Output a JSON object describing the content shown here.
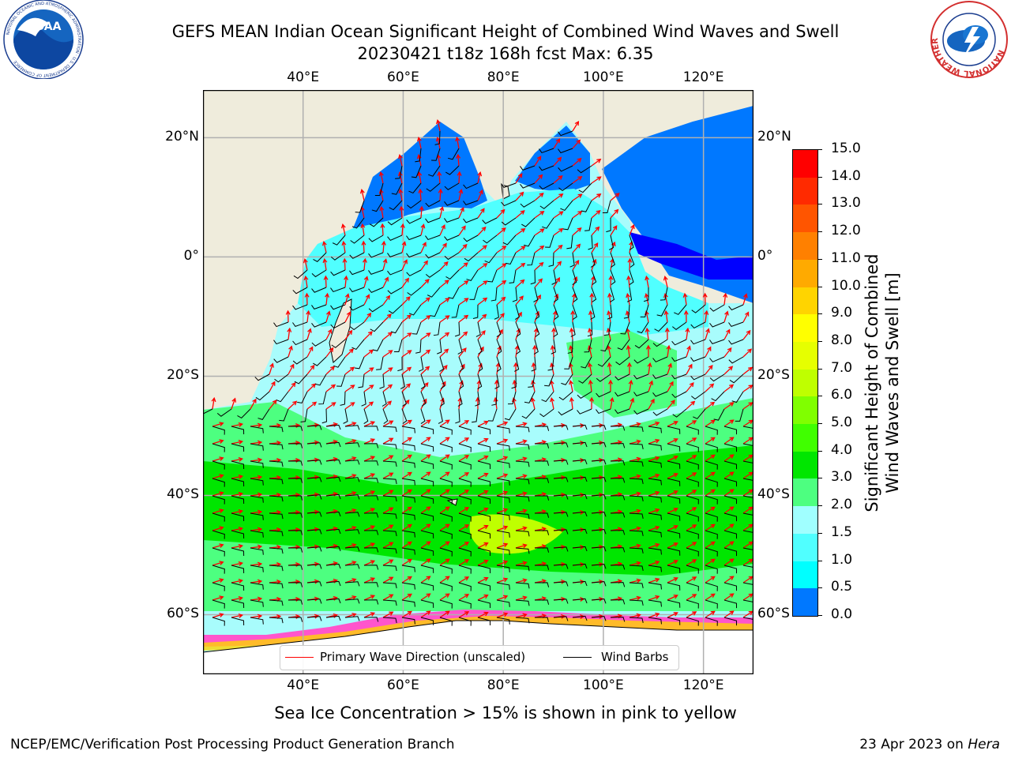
{
  "header": {
    "title_line1": "GEFS MEAN Indian Ocean Significant Height of Combined Wind Waves and Swell",
    "title_line2": "20230421 t18z 168h fcst   Max: 6.35"
  },
  "logos": {
    "noaa_text": "NOAA",
    "noaa_ring": "NATIONAL OCEANIC AND ATMOSPHERIC ADMINISTRATION · U.S. DEPARTMENT OF COMMERCE",
    "nws_ring": "NATIONAL WEATHER SERVICE"
  },
  "map": {
    "lon_ticks": [
      "40°E",
      "60°E",
      "80°E",
      "100°E",
      "120°E"
    ],
    "lat_ticks": [
      "20°N",
      "0°",
      "20°S",
      "40°S",
      "60°S"
    ],
    "lat_values": [
      20,
      0,
      -20,
      -40,
      -60
    ],
    "lon_values": [
      40,
      60,
      80,
      100,
      120
    ],
    "extent": {
      "lon": [
        20,
        130
      ],
      "lat": [
        -70,
        28
      ]
    },
    "colors": {
      "land": "#efecdc",
      "grid": "#b0b0b0",
      "coast": "#000000"
    }
  },
  "legend": {
    "wave_direction": "Primary Wave Direction (unscaled)",
    "wind_barbs": "Wind Barbs",
    "wave_color": "#ff0000",
    "barb_color": "#000000"
  },
  "colorbar": {
    "label_line1": "Significant Height of Combined",
    "label_line2": "Wind Waves and Swell [m]",
    "ticks": [
      "15.0",
      "14.0",
      "13.0",
      "12.0",
      "11.0",
      "10.0",
      "9.0",
      "8.0",
      "7.0",
      "6.0",
      "5.0",
      "4.0",
      "3.0",
      "2.0",
      "1.5",
      "1.0",
      "0.5",
      "0.0"
    ],
    "colors": [
      "#ff0000",
      "#ff2a00",
      "#ff5500",
      "#ff8000",
      "#ffaa00",
      "#ffd400",
      "#ffff00",
      "#e6ff00",
      "#bfff00",
      "#80ff00",
      "#40ff00",
      "#00e600",
      "#4dff80",
      "#a0ffff",
      "#50ffff",
      "#00ffff",
      "#0078ff",
      "#0000ff"
    ]
  },
  "caption": "Sea Ice Concentration > 15% is shown in pink to yellow",
  "footer": {
    "left": "NCEP/EMC/Verification Post Processing Product Generation Branch",
    "right_date": "23 Apr 2023 on ",
    "right_host": "Hera"
  }
}
